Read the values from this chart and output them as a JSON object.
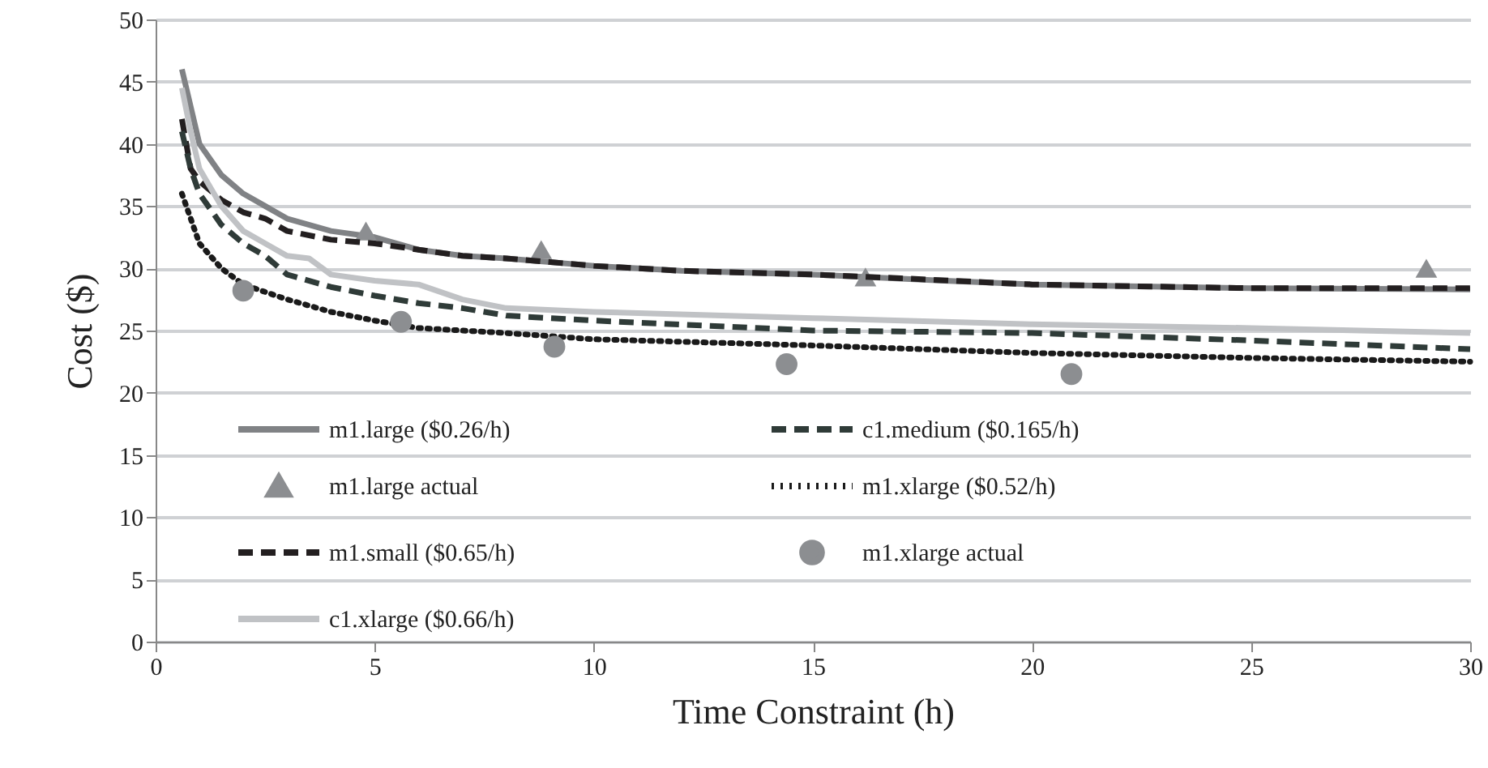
{
  "chart_data": {
    "type": "line",
    "xlabel": "Time Constraint (h)",
    "ylabel": "Cost ($)",
    "xlim": [
      0,
      30
    ],
    "xticks": [
      0,
      5,
      10,
      15,
      20,
      25,
      30
    ],
    "ylim": [
      0,
      50
    ],
    "yticks": [
      0,
      5,
      10,
      15,
      20,
      25,
      30,
      35,
      40,
      45,
      50
    ],
    "grid": "y",
    "legend": "bottom",
    "series": [
      {
        "name": "m1.large ($0.26/h)",
        "color": "#808285",
        "line_style": "solid",
        "x": [
          0.6,
          0.8,
          1,
          1.5,
          2,
          2.5,
          3,
          4,
          5,
          6,
          7,
          8,
          10,
          12,
          15,
          18,
          20,
          25,
          30
        ],
        "values": [
          46,
          43,
          40,
          37.5,
          36,
          35,
          34,
          33,
          32.5,
          31.5,
          31,
          30.8,
          30.2,
          29.8,
          29.5,
          29,
          28.7,
          28.4,
          28.3
        ]
      },
      {
        "name": "m1.large actual",
        "type": "scatter",
        "marker": "triangle",
        "color": "#8c8e91",
        "x": [
          4.8,
          8.8,
          16.2,
          29
        ],
        "values": [
          33,
          31.5,
          29.3,
          30
        ]
      },
      {
        "name": "m1.small ($0.65/h)",
        "color": "#231f20",
        "line_style": "dashed",
        "x": [
          0.6,
          0.8,
          1,
          1.5,
          2,
          2.5,
          3,
          4,
          5,
          6,
          7,
          8,
          10,
          12,
          15,
          17,
          20,
          25,
          30
        ],
        "values": [
          42,
          38,
          37,
          35.5,
          34.5,
          34,
          33,
          32.3,
          32,
          31.5,
          31,
          30.8,
          30.2,
          29.8,
          29.5,
          29.2,
          28.7,
          28.4,
          28.4
        ]
      },
      {
        "name": "c1.xlarge ($0.66/h)",
        "color": "#c0c2c5",
        "line_style": "solid",
        "x": [
          0.6,
          0.8,
          1,
          1.5,
          2,
          2.5,
          3,
          3.5,
          4,
          5,
          6,
          7,
          8,
          10,
          15,
          20,
          25,
          30
        ],
        "values": [
          44.5,
          41,
          38,
          35,
          33,
          32,
          31,
          30.8,
          29.5,
          29,
          28.7,
          27.5,
          26.8,
          26.5,
          26,
          25.5,
          25.2,
          24.8
        ]
      },
      {
        "name": "c1.medium ($0.165/h)",
        "color": "#2f3b38",
        "line_style": "dashed",
        "x": [
          0.6,
          0.8,
          1,
          1.5,
          2,
          2.5,
          3,
          4,
          5,
          6,
          7,
          8,
          10,
          15,
          20,
          25,
          30
        ],
        "values": [
          41,
          38,
          36,
          33.5,
          32,
          31,
          29.5,
          28.5,
          27.8,
          27.2,
          26.8,
          26.2,
          25.8,
          25,
          24.8,
          24.2,
          23.5
        ]
      },
      {
        "name": "m1.xlarge ($0.52/h)",
        "color": "#1a1a1a",
        "line_style": "dotted",
        "x": [
          0.6,
          0.8,
          1,
          1.5,
          2,
          3,
          4,
          5,
          6,
          8,
          10,
          15,
          20,
          25,
          30
        ],
        "values": [
          36,
          34,
          32,
          30,
          28.7,
          27.5,
          26.5,
          25.8,
          25.2,
          24.8,
          24.3,
          23.8,
          23.2,
          22.8,
          22.5
        ]
      },
      {
        "name": "m1.xlarge actual",
        "type": "scatter",
        "marker": "circle",
        "color": "#8c8e91",
        "x": [
          2,
          5.6,
          9.1,
          14.4,
          20.9
        ],
        "values": [
          28.2,
          25.7,
          23.7,
          22.3,
          21.5
        ]
      }
    ]
  }
}
